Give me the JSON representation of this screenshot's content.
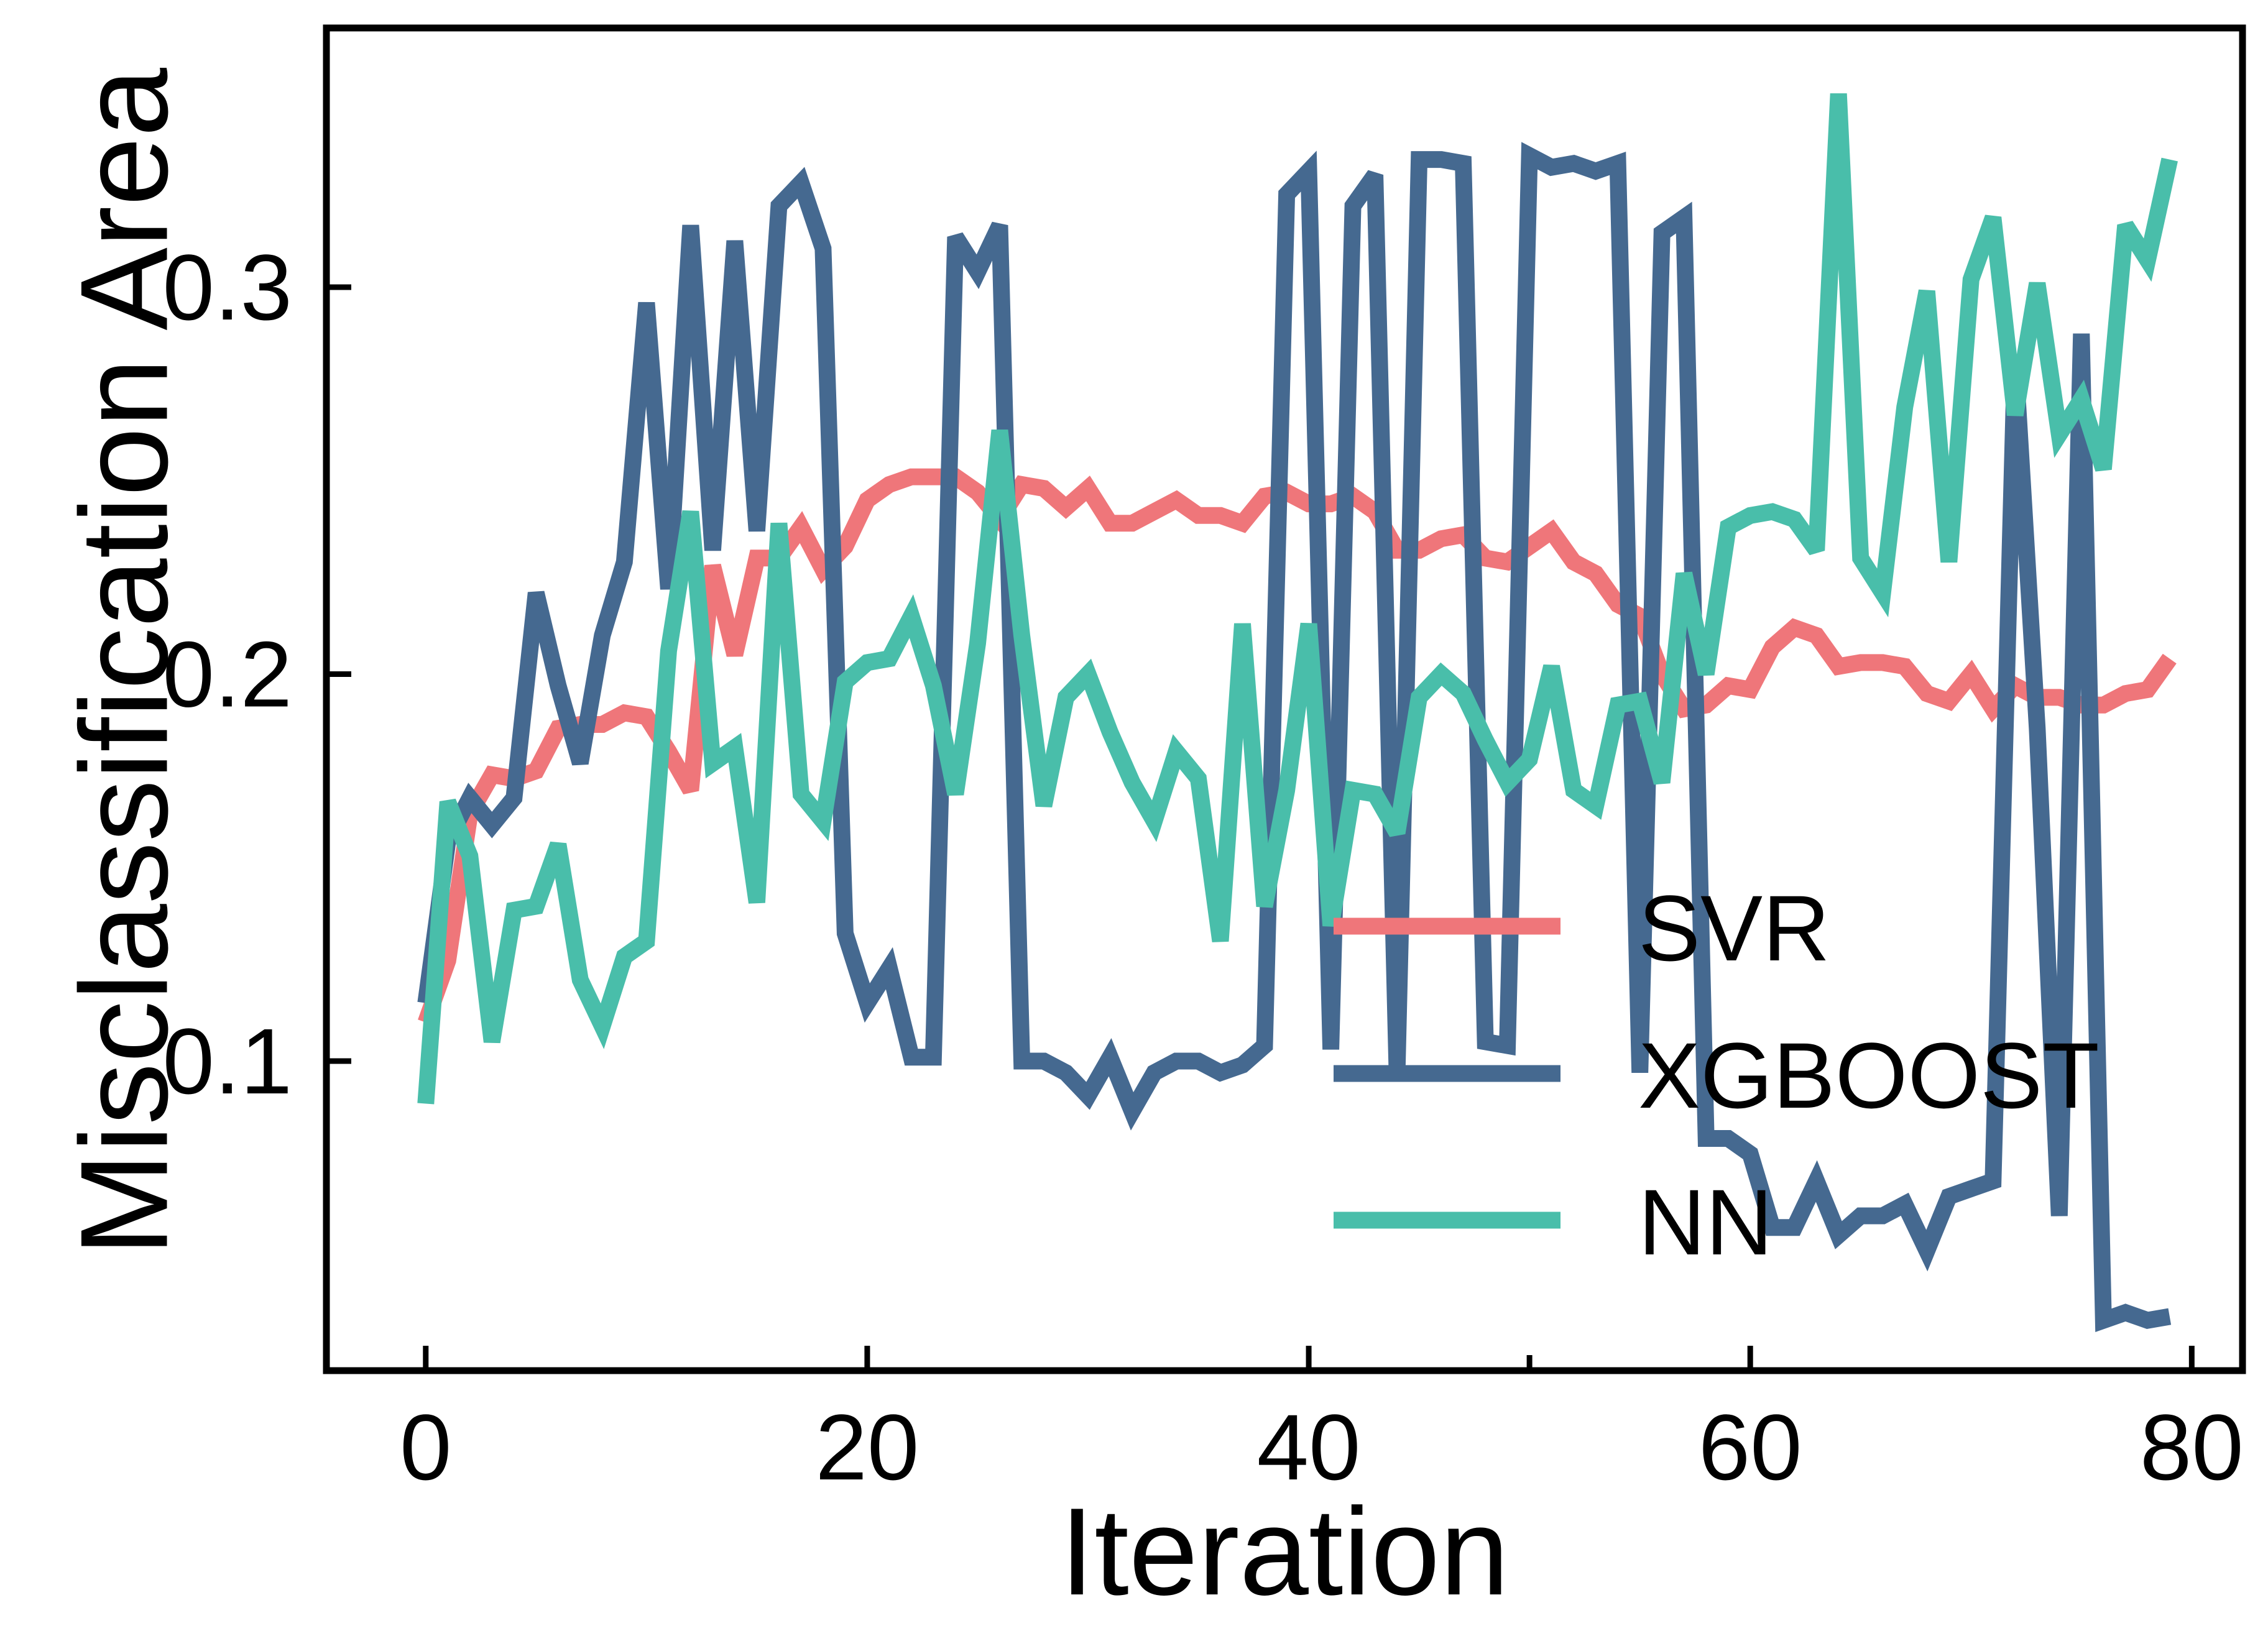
{
  "chart_data": {
    "type": "line",
    "title": "",
    "xlabel": "Iteration",
    "ylabel": "Misclassification Area",
    "xlim": [
      -4.5,
      82.3
    ],
    "ylim": [
      0.02,
      0.367
    ],
    "xticks": [
      0,
      20,
      40,
      60,
      80
    ],
    "yticks": [
      0.1,
      0.2,
      0.3
    ],
    "xtick_labels": [
      "0",
      "20",
      "40",
      "60",
      "80"
    ],
    "ytick_labels": [
      "0.1",
      "0.2",
      "0.3"
    ],
    "grid": false,
    "legend_position": "lower-right",
    "x": [
      0,
      1,
      2,
      3,
      4,
      5,
      6,
      7,
      8,
      9,
      10,
      11,
      12,
      13,
      14,
      15,
      16,
      17,
      18,
      19,
      20,
      21,
      22,
      23,
      24,
      25,
      26,
      27,
      28,
      29,
      30,
      31,
      32,
      33,
      34,
      35,
      36,
      37,
      38,
      39,
      40,
      41,
      42,
      43,
      44,
      45,
      46,
      47,
      48,
      49,
      50,
      51,
      52,
      53,
      54,
      55,
      56,
      57,
      58,
      59,
      60,
      61,
      62,
      63,
      64,
      65,
      66,
      67,
      68,
      69,
      70,
      71,
      72,
      73,
      74,
      75,
      76,
      77,
      78,
      79
    ],
    "series": [
      {
        "name": "SVR",
        "color": "#EF767A",
        "values": [
          0.11,
          0.126,
          0.164,
          0.174,
          0.173,
          0.175,
          0.186,
          0.187,
          0.187,
          0.19,
          0.189,
          0.18,
          0.17,
          0.228,
          0.205,
          0.23,
          0.23,
          0.238,
          0.227,
          0.233,
          0.245,
          0.249,
          0.251,
          0.251,
          0.251,
          0.247,
          0.24,
          0.249,
          0.248,
          0.243,
          0.248,
          0.239,
          0.239,
          0.242,
          0.245,
          0.241,
          0.241,
          0.239,
          0.246,
          0.247,
          0.244,
          0.244,
          0.246,
          0.242,
          0.232,
          0.232,
          0.235,
          0.236,
          0.23,
          0.229,
          0.233,
          0.237,
          0.229,
          0.226,
          0.218,
          0.215,
          0.2,
          0.191,
          0.192,
          0.197,
          0.196,
          0.207,
          0.212,
          0.21,
          0.202,
          0.203,
          0.203,
          0.202,
          0.195,
          0.193,
          0.2,
          0.191,
          0.197,
          0.194,
          0.194,
          0.192,
          0.192,
          0.195,
          0.196,
          0.204
        ]
      },
      {
        "name": "XGBOOST",
        "color": "#456990",
        "values": [
          0.115,
          0.157,
          0.168,
          0.161,
          0.168,
          0.221,
          0.197,
          0.177,
          0.21,
          0.229,
          0.296,
          0.222,
          0.316,
          0.232,
          0.312,
          0.237,
          0.321,
          0.327,
          0.31,
          0.133,
          0.115,
          0.124,
          0.101,
          0.101,
          0.313,
          0.304,
          0.316,
          0.1,
          0.1,
          0.097,
          0.091,
          0.101,
          0.087,
          0.097,
          0.1,
          0.1,
          0.097,
          0.099,
          0.104,
          0.324,
          0.33,
          0.103,
          0.321,
          0.329,
          0.097,
          0.333,
          0.333,
          0.332,
          0.105,
          0.104,
          0.334,
          0.331,
          0.332,
          0.33,
          0.332,
          0.097,
          0.314,
          0.318,
          0.08,
          0.08,
          0.076,
          0.057,
          0.057,
          0.069,
          0.055,
          0.06,
          0.06,
          0.063,
          0.051,
          0.065,
          0.067,
          0.069,
          0.281,
          0.186,
          0.06,
          0.288,
          0.033,
          0.035,
          0.033,
          0.034
        ]
      },
      {
        "name": "NN",
        "color": "#49BEAA",
        "values": [
          0.089,
          0.167,
          0.153,
          0.105,
          0.139,
          0.14,
          0.156,
          0.121,
          0.109,
          0.127,
          0.131,
          0.206,
          0.242,
          0.177,
          0.181,
          0.141,
          0.239,
          0.169,
          0.162,
          0.198,
          0.203,
          0.204,
          0.215,
          0.197,
          0.169,
          0.208,
          0.263,
          0.21,
          0.166,
          0.194,
          0.2,
          0.185,
          0.172,
          0.162,
          0.18,
          0.173,
          0.131,
          0.213,
          0.14,
          0.17,
          0.213,
          0.135,
          0.17,
          0.169,
          0.159,
          0.194,
          0.2,
          0.195,
          0.183,
          0.172,
          0.178,
          0.202,
          0.17,
          0.166,
          0.192,
          0.193,
          0.172,
          0.226,
          0.2,
          0.238,
          0.241,
          0.242,
          0.24,
          0.232,
          0.35,
          0.23,
          0.221,
          0.269,
          0.299,
          0.229,
          0.302,
          0.318,
          0.267,
          0.301,
          0.262,
          0.271,
          0.253,
          0.316,
          0.307,
          0.333
        ]
      }
    ]
  }
}
